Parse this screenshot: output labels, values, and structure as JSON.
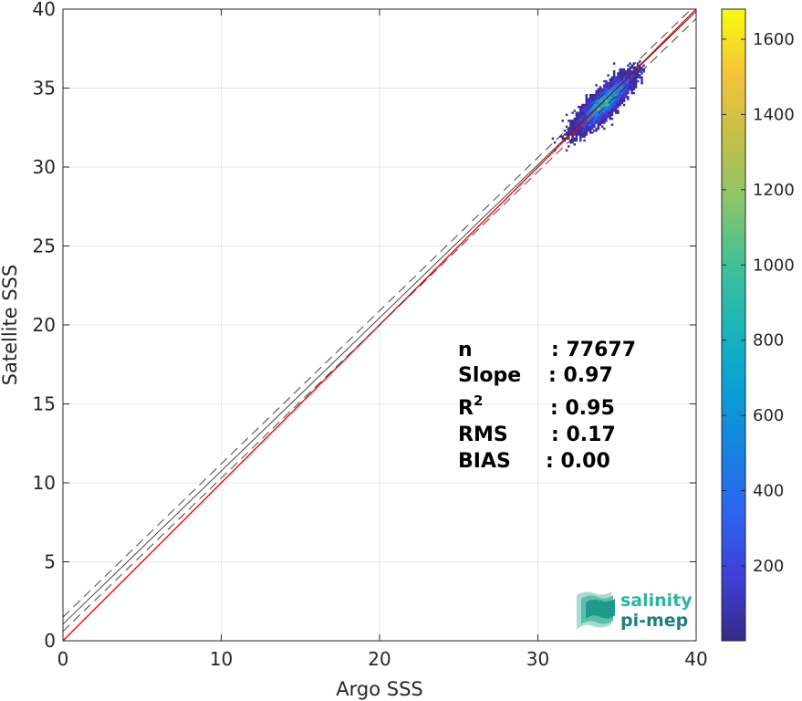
{
  "chart_data": {
    "type": "heatmap",
    "subtype": "density scatter with 1:1 reference lines",
    "xlabel": "Argo SSS",
    "ylabel": "Satellite SSS",
    "xlim": [
      0,
      40
    ],
    "ylim": [
      0,
      40
    ],
    "xticks": [
      "0",
      "10",
      "20",
      "30",
      "40"
    ],
    "yticks": [
      "0",
      "5",
      "10",
      "15",
      "20",
      "25",
      "30",
      "35",
      "40"
    ],
    "grid": true,
    "lines": [
      {
        "name": "1:1",
        "color": "#ff0000",
        "style": "solid",
        "x": [
          0,
          40
        ],
        "y": [
          0,
          40
        ]
      },
      {
        "name": "fit",
        "color": "#333333",
        "style": "solid",
        "x": [
          0,
          40
        ],
        "y": [
          1.05,
          39.85
        ]
      },
      {
        "name": "upper",
        "color": "#333333",
        "style": "dashed",
        "x": [
          0,
          40
        ],
        "y": [
          1.5,
          40.3
        ]
      },
      {
        "name": "lower",
        "color": "#333333",
        "style": "dashed",
        "x": [
          0,
          40
        ],
        "y": [
          0.6,
          39.4
        ]
      }
    ],
    "density": {
      "center": [
        34.2,
        34.1
      ],
      "range_x": [
        28.8,
        36.8
      ],
      "range_y": [
        28.9,
        36.8
      ]
    },
    "colorbar": {
      "colormap": "parula",
      "ticks": [
        200,
        400,
        600,
        800,
        1000,
        1200,
        1400,
        1600
      ],
      "range": [
        1,
        1680
      ]
    },
    "stats": [
      {
        "label": "n",
        "sep": ": ",
        "value": "77677"
      },
      {
        "label": "Slope",
        "sep": ": ",
        "value": "0.97"
      },
      {
        "label": "R",
        "sup": "2",
        "sep": ": ",
        "value": "0.95"
      },
      {
        "label": "RMS",
        "sep": ": ",
        "value": "0.17"
      },
      {
        "label": "BIAS",
        "sep": ": ",
        "value": "0.00"
      }
    ]
  },
  "logo": {
    "line1": "salinity",
    "line2": "pi-mep",
    "color1": "#2bb5a0",
    "color2": "#1f7f7a"
  }
}
